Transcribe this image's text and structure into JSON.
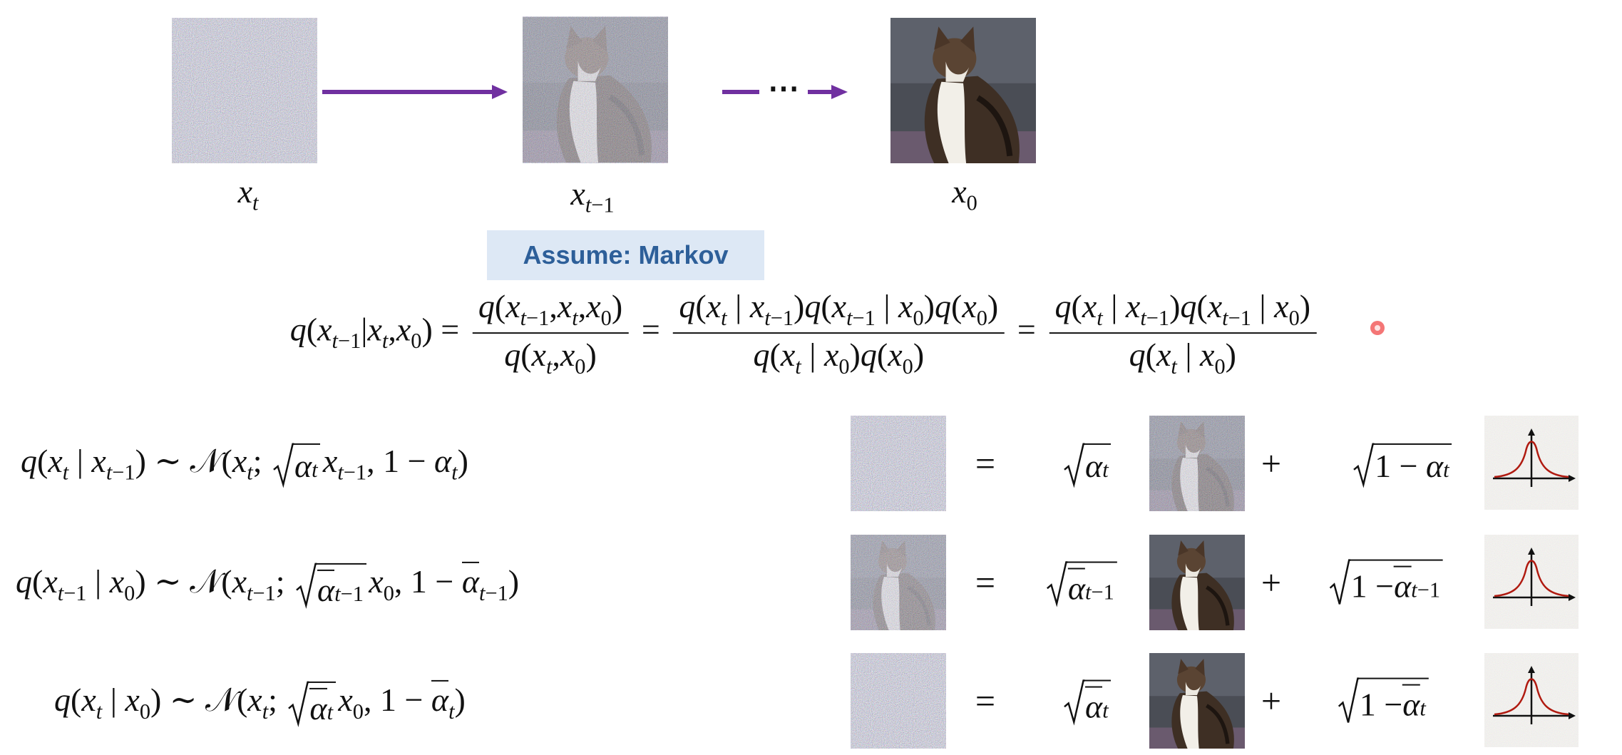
{
  "diagram": {
    "labels": [
      [
        "x",
        {
          "sub": "t"
        }
      ],
      [
        "x",
        {
          "sub": "t−1"
        }
      ],
      [
        "x",
        {
          "sub": "0"
        }
      ]
    ],
    "ellipsis": "⋯"
  },
  "note": "Assume: Markov",
  "bayes": [
    "q(x",
    {
      "sub": "t−1"
    },
    "|x",
    {
      "sub": "t"
    },
    ",x",
    {
      "sub": "0"
    },
    ") = ",
    {
      "frac": [
        [
          "q(x",
          {
            "sub": "t−1"
          },
          ",x",
          {
            "sub": "t"
          },
          ",x",
          {
            "sub": "0"
          },
          ")"
        ],
        [
          "q(x",
          {
            "sub": "t"
          },
          ",x",
          {
            "sub": "0"
          },
          ")"
        ]
      ]
    },
    " = ",
    {
      "frac": [
        [
          "q(x",
          {
            "sub": "t"
          },
          " | x",
          {
            "sub": "t−1"
          },
          ")q(x",
          {
            "sub": "t−1"
          },
          " | x",
          {
            "sub": "0"
          },
          ")q(x",
          {
            "sub": "0"
          },
          ")"
        ],
        [
          "q(x",
          {
            "sub": "t"
          },
          " | x",
          {
            "sub": "0"
          },
          ")q(x",
          {
            "sub": "0"
          },
          ")"
        ]
      ]
    },
    " = ",
    {
      "frac": [
        [
          "q(x",
          {
            "sub": "t"
          },
          " | x",
          {
            "sub": "t−1"
          },
          ")q(x",
          {
            "sub": "t−1"
          },
          " | x",
          {
            "sub": "0"
          },
          ")"
        ],
        [
          "q(x",
          {
            "sub": "t"
          },
          " | x",
          {
            "sub": "0"
          },
          ")"
        ]
      ]
    }
  ],
  "rows": [
    {
      "left": [
        "q(x",
        {
          "sub": "t"
        },
        " | x",
        {
          "sub": "t−1"
        },
        ") ∼ 𝒩(x",
        {
          "sub": "t"
        },
        "; ",
        {
          "sqrt": [
            "α",
            {
              "sub": "t"
            }
          ]
        },
        "x",
        {
          "sub": "t−1"
        },
        ", 1 − α",
        {
          "sub": "t"
        },
        ")"
      ],
      "equals": "=",
      "coef1": [
        {
          "sqrt": [
            "α",
            {
              "sub": "t"
            }
          ]
        }
      ],
      "plus": "+",
      "coef2": [
        {
          "sqrt": [
            "1 − α",
            {
              "sub": "t"
            }
          ]
        }
      ]
    },
    {
      "left": [
        "q(x",
        {
          "sub": "t−1"
        },
        " | x",
        {
          "sub": "0"
        },
        ") ∼ 𝒩(x",
        {
          "sub": "t−1"
        },
        "; ",
        {
          "sqrt": [
            {
              "bar": "α"
            },
            {
              "sub": "t−1"
            }
          ]
        },
        "x",
        {
          "sub": "0"
        },
        ", 1 − ",
        {
          "bar": "α"
        },
        {
          "sub": "t−1"
        },
        ")"
      ],
      "equals": "=",
      "coef1": [
        {
          "sqrt": [
            {
              "bar": "α"
            },
            {
              "sub": "t−1"
            }
          ]
        }
      ],
      "plus": "+",
      "coef2": [
        {
          "sqrt": [
            "1 − ",
            {
              "bar": "α"
            },
            {
              "sub": "t−1"
            }
          ]
        }
      ]
    },
    {
      "left": [
        "q(x",
        {
          "sub": "t"
        },
        " | x",
        {
          "sub": "0"
        },
        ") ∼ 𝒩(x",
        {
          "sub": "t"
        },
        "; ",
        {
          "sqrt": [
            {
              "bar": "α"
            },
            {
              "sub": "t"
            }
          ]
        },
        "x",
        {
          "sub": "0"
        },
        ", 1 − ",
        {
          "bar": "α"
        },
        {
          "sub": "t"
        },
        ")"
      ],
      "equals": "=",
      "coef1": [
        {
          "sqrt": [
            {
              "bar": "α"
            },
            {
              "sub": "t"
            }
          ]
        }
      ],
      "plus": "+",
      "coef2": [
        {
          "sqrt": [
            "1 − ",
            {
              "bar": "α"
            },
            {
              "sub": "t"
            }
          ]
        }
      ]
    }
  ]
}
